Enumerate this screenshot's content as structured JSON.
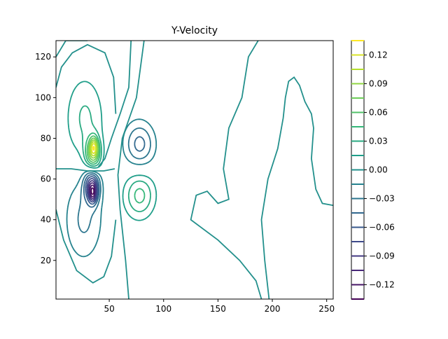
{
  "chart_data": {
    "type": "contour",
    "title": "Y-Velocity",
    "xlabel": "",
    "ylabel": "",
    "xlim": [
      1,
      256
    ],
    "ylim": [
      1,
      128
    ],
    "x_ticks": [
      50,
      100,
      150,
      200,
      250
    ],
    "y_ticks": [
      20,
      40,
      60,
      80,
      100,
      120
    ],
    "colorbar": {
      "range": [
        -0.135,
        0.135
      ],
      "tick_values": [
        -0.12,
        -0.09,
        -0.06,
        -0.03,
        0.0,
        0.03,
        0.06,
        0.09,
        0.12
      ],
      "tick_labels": [
        "−0.12",
        "−0.09",
        "−0.06",
        "−0.03",
        "0.00",
        "0.03",
        "0.06",
        "0.09",
        "0.12"
      ],
      "levels": [
        -0.135,
        -0.12,
        -0.105,
        -0.09,
        -0.075,
        -0.06,
        -0.045,
        -0.03,
        -0.015,
        0.0,
        0.015,
        0.03,
        0.045,
        0.06,
        0.075,
        0.09,
        0.105,
        0.12,
        0.135
      ],
      "colormap": "viridis"
    },
    "features": [
      {
        "kind": "positive_peak",
        "x": 36,
        "y": 75,
        "value": 0.12
      },
      {
        "kind": "negative_peak",
        "x": 35,
        "y": 54,
        "value": -0.13
      },
      {
        "kind": "negative_lobe",
        "x": 78,
        "y": 77,
        "value": -0.045
      },
      {
        "kind": "positive_lobe",
        "x": 78,
        "y": 52,
        "value": 0.045
      }
    ]
  }
}
